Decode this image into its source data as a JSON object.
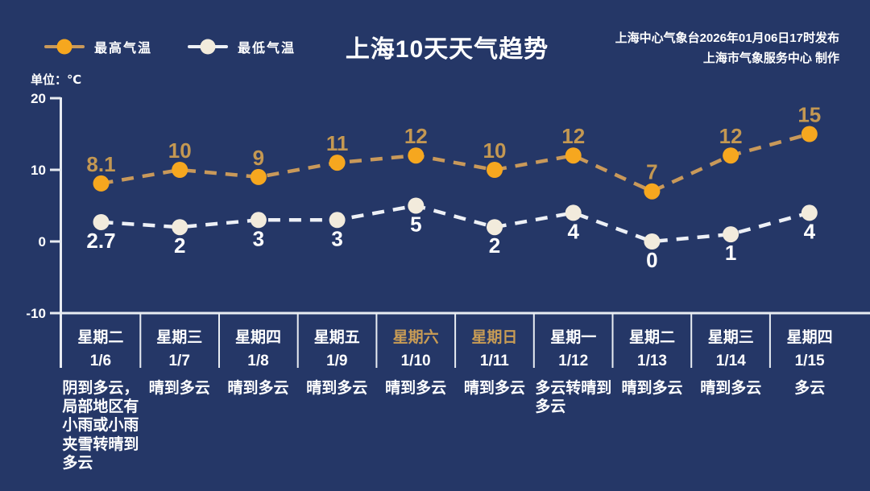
{
  "header": {
    "title": "上海10天天气趋势",
    "publisher_line1": "上海中心气象台2026年01月06日17时发布",
    "publisher_line2": "上海市气象服务中心 制作",
    "unit_label": "单位：℃"
  },
  "legend": {
    "high_label": "最高气温",
    "low_label": "最低气温"
  },
  "colors": {
    "background": "#253767",
    "axis": "#E8ECF2",
    "text": "#FFFFFF",
    "high_marker": "#F6A71F",
    "high_line": "#C9995A",
    "high_label": "#C49852",
    "low_marker": "#F2EBDC",
    "low_line": "#EDF0F6",
    "low_label": "#FFFFFF",
    "weekend_label": "#C89C55"
  },
  "chart_data": {
    "type": "line",
    "title": "上海10天天气趋势",
    "ylabel": "单位：℃",
    "ylim": [
      -10,
      20
    ],
    "yticks": [
      "20",
      "10",
      "0",
      "-10"
    ],
    "grid": false,
    "legend_position": "top-left",
    "line_style": "dashed",
    "categories": [
      "1/6",
      "1/7",
      "1/8",
      "1/9",
      "1/10",
      "1/11",
      "1/12",
      "1/13",
      "1/14",
      "1/15"
    ],
    "series": [
      {
        "name": "最高气温",
        "values": [
          8.1,
          10,
          9,
          11,
          12,
          10,
          12,
          7,
          12,
          15
        ]
      },
      {
        "name": "最低气温",
        "values": [
          2.7,
          2,
          3,
          3,
          5,
          2,
          4,
          0,
          1,
          4
        ]
      }
    ]
  },
  "days": [
    {
      "weekday": "星期二",
      "date": "1/6",
      "weather": "阴到多云，\n局部地区有\n小雨或小雨\n夹雪转晴到\n多云",
      "weekend": false
    },
    {
      "weekday": "星期三",
      "date": "1/7",
      "weather": "晴到多云",
      "weekend": false
    },
    {
      "weekday": "星期四",
      "date": "1/8",
      "weather": "晴到多云",
      "weekend": false
    },
    {
      "weekday": "星期五",
      "date": "1/9",
      "weather": "晴到多云",
      "weekend": false
    },
    {
      "weekday": "星期六",
      "date": "1/10",
      "weather": "晴到多云",
      "weekend": true
    },
    {
      "weekday": "星期日",
      "date": "1/11",
      "weather": "晴到多云",
      "weekend": true
    },
    {
      "weekday": "星期一",
      "date": "1/12",
      "weather": "多云转晴到\n多云",
      "weekend": false
    },
    {
      "weekday": "星期二",
      "date": "1/13",
      "weather": "晴到多云",
      "weekend": false
    },
    {
      "weekday": "星期三",
      "date": "1/14",
      "weather": "晴到多云",
      "weekend": false
    },
    {
      "weekday": "星期四",
      "date": "1/15",
      "weather": "多云",
      "weekend": false
    }
  ]
}
